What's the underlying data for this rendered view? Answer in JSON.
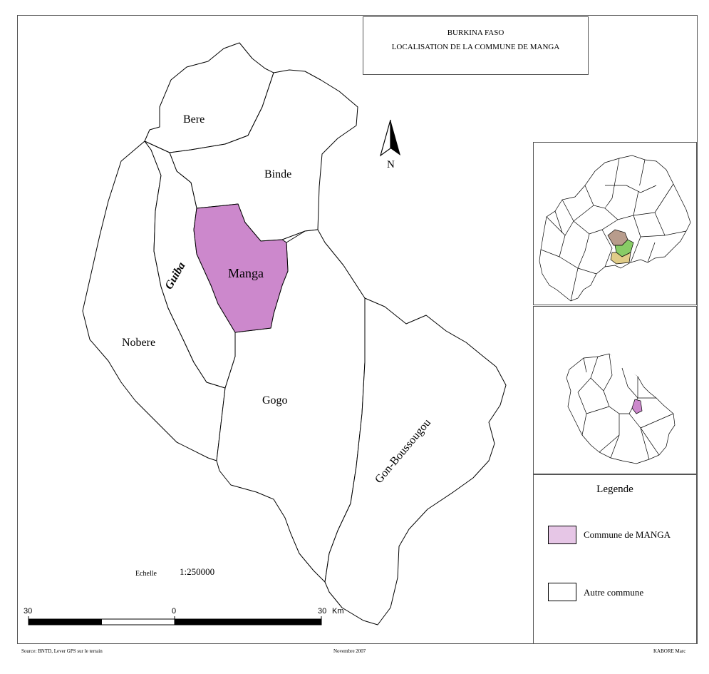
{
  "title": {
    "line1": "BURKINA FASO",
    "line2": "LOCALISATION DE LA COMMUNE DE MANGA"
  },
  "communes": [
    {
      "name": "Bere",
      "role": "autre"
    },
    {
      "name": "Binde",
      "role": "autre"
    },
    {
      "name": "Manga",
      "role": "commune"
    },
    {
      "name": "Guiba",
      "role": "autre"
    },
    {
      "name": "Nobere",
      "role": "autre"
    },
    {
      "name": "Gogo",
      "role": "autre"
    },
    {
      "name": "Gon-Boussougou",
      "role": "autre"
    }
  ],
  "north_arrow": {
    "label": "N"
  },
  "legend": {
    "title": "Legende",
    "items": [
      {
        "label": "Commune de MANGA",
        "color": "#e6c6e6"
      },
      {
        "label": "Autre commune",
        "color": "#ffffff"
      }
    ]
  },
  "scale": {
    "label": "Echelle",
    "value": "1:250000",
    "ticks": [
      "30",
      "0",
      "30",
      "Km"
    ]
  },
  "footer": {
    "source": "Source: BNTD, Lever GPS sur le terrain",
    "date": "Novembre 2007",
    "author": "KABORE Marc"
  },
  "colors": {
    "manga_fill": "#cc88cc",
    "legend_commune": "#e6c6e6",
    "boundary": "#000000",
    "inset_region_1": "#b89c8c",
    "inset_region_2": "#88cc66",
    "inset_region_3": "#e0cc88"
  }
}
